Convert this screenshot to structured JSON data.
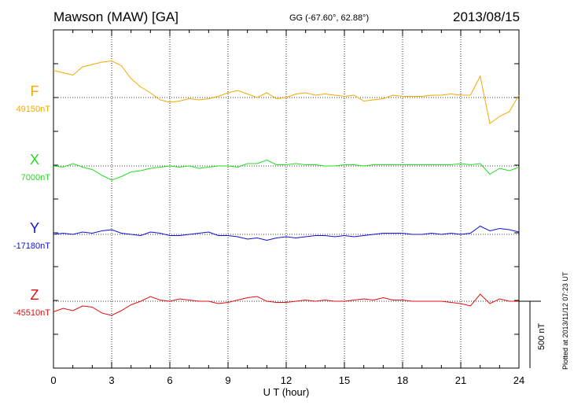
{
  "header": {
    "station": "Mawson (MAW)  [GA]",
    "coords": "GG (-67.60°,  62.88°)",
    "date": "2013/08/15"
  },
  "plot_note": "Plotted at 2013/11/12 07:23 UT",
  "colors": {
    "F": "#f5a800",
    "X": "#22dd22",
    "Y": "#1010d8",
    "Z": "#e01010"
  },
  "chart_data": {
    "type": "line",
    "title": "Mawson (MAW)  [GA]",
    "xlabel": "U T (hour)",
    "ylabel": "",
    "xlim": [
      0,
      24
    ],
    "x_ticks": [
      "0",
      "3",
      "6",
      "9",
      "12",
      "15",
      "18",
      "21",
      "24"
    ],
    "grid": true,
    "scale_bar": "500 nT",
    "x": [
      0,
      0.5,
      1,
      1.5,
      2,
      2.5,
      3,
      3.5,
      4,
      4.5,
      5,
      5.5,
      6,
      6.5,
      7,
      7.5,
      8,
      8.5,
      9,
      9.5,
      10,
      10.5,
      11,
      11.5,
      12,
      12.5,
      13,
      13.5,
      14,
      14.5,
      15,
      15.5,
      16,
      16.5,
      17,
      17.5,
      18,
      18.5,
      19,
      19.5,
      20,
      20.5,
      21,
      21.5,
      22,
      22.5,
      23,
      23.5,
      24
    ],
    "series": [
      {
        "name": "F",
        "baseline_label": "49150nT",
        "values": [
          115,
          105,
          95,
          130,
          140,
          150,
          155,
          135,
          80,
          45,
          20,
          -10,
          -20,
          -15,
          -5,
          -10,
          -5,
          5,
          20,
          30,
          15,
          0,
          20,
          -5,
          0,
          15,
          20,
          10,
          15,
          10,
          5,
          10,
          -15,
          -10,
          -5,
          10,
          5,
          5,
          5,
          10,
          10,
          15,
          10,
          10,
          90,
          -110,
          -80,
          -60,
          10
        ]
      },
      {
        "name": "X",
        "baseline_label": "7000nT",
        "values": [
          0,
          -5,
          10,
          -5,
          -15,
          -40,
          -60,
          -45,
          -25,
          -20,
          -10,
          -5,
          0,
          -5,
          0,
          -10,
          -5,
          0,
          0,
          -5,
          10,
          10,
          25,
          5,
          5,
          10,
          5,
          5,
          0,
          0,
          5,
          5,
          0,
          5,
          5,
          5,
          5,
          5,
          5,
          5,
          5,
          5,
          10,
          5,
          10,
          -35,
          -10,
          -20,
          -5
        ]
      },
      {
        "name": "Y",
        "baseline_label": "-17180nT",
        "values": [
          0,
          5,
          0,
          10,
          5,
          15,
          20,
          5,
          0,
          -5,
          10,
          5,
          -5,
          -5,
          0,
          5,
          10,
          -5,
          -5,
          -10,
          -20,
          -15,
          -25,
          -15,
          -10,
          -15,
          -10,
          -5,
          -5,
          -10,
          -5,
          -10,
          -5,
          0,
          5,
          5,
          5,
          0,
          0,
          5,
          0,
          5,
          0,
          5,
          35,
          15,
          25,
          20,
          10
        ]
      },
      {
        "name": "Z",
        "baseline_label": "-45510nT",
        "values": [
          -45,
          -30,
          -40,
          -20,
          -25,
          -50,
          -60,
          -40,
          -15,
          0,
          20,
          5,
          0,
          10,
          5,
          0,
          0,
          -10,
          -5,
          5,
          15,
          20,
          0,
          -5,
          -5,
          0,
          5,
          0,
          5,
          0,
          0,
          5,
          10,
          5,
          15,
          5,
          5,
          0,
          0,
          0,
          0,
          -5,
          -10,
          -20,
          30,
          -10,
          10,
          0,
          0
        ]
      }
    ]
  }
}
